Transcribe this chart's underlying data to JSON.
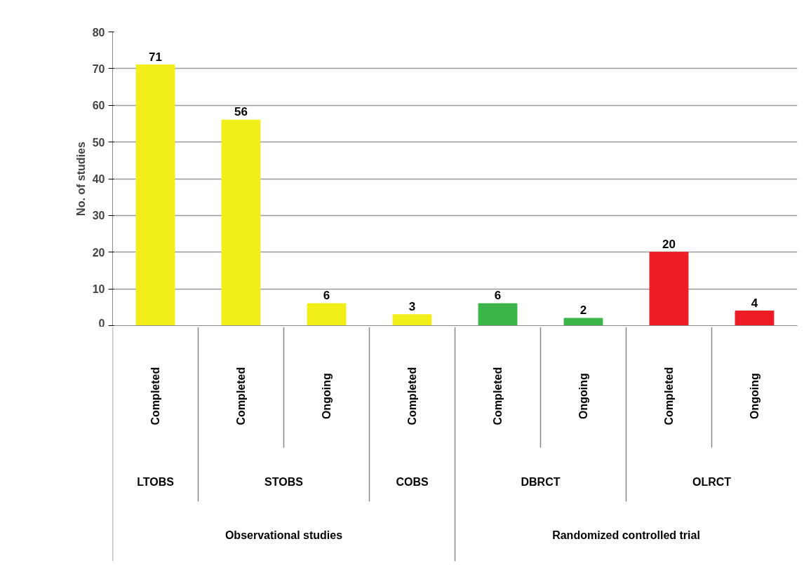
{
  "chart_data": {
    "type": "bar",
    "ylabel": "No. of studies",
    "categories": [
      "Completed",
      "Completed",
      "Ongoing",
      "Completed",
      "Completed",
      "Ongoing",
      "Completed",
      "Ongoing"
    ],
    "values": [
      71,
      56,
      6,
      3,
      6,
      2,
      20,
      4
    ],
    "colors": [
      "#f2ee1a",
      "#f2ee1a",
      "#f2ee1a",
      "#f2ee1a",
      "#3cb54a",
      "#3cb54a",
      "#ee1c24",
      "#ee1c24"
    ],
    "ylim": [
      0,
      80
    ],
    "yticks": [
      0,
      10,
      20,
      30,
      40,
      50,
      60,
      70,
      80
    ],
    "grid": "y",
    "data_labels": true,
    "annotations": [
      "LTOBS",
      "STOBS",
      "COBS",
      "DBRCT",
      "OLRCT",
      "Observational studies",
      "Randomized controlled trial"
    ]
  }
}
